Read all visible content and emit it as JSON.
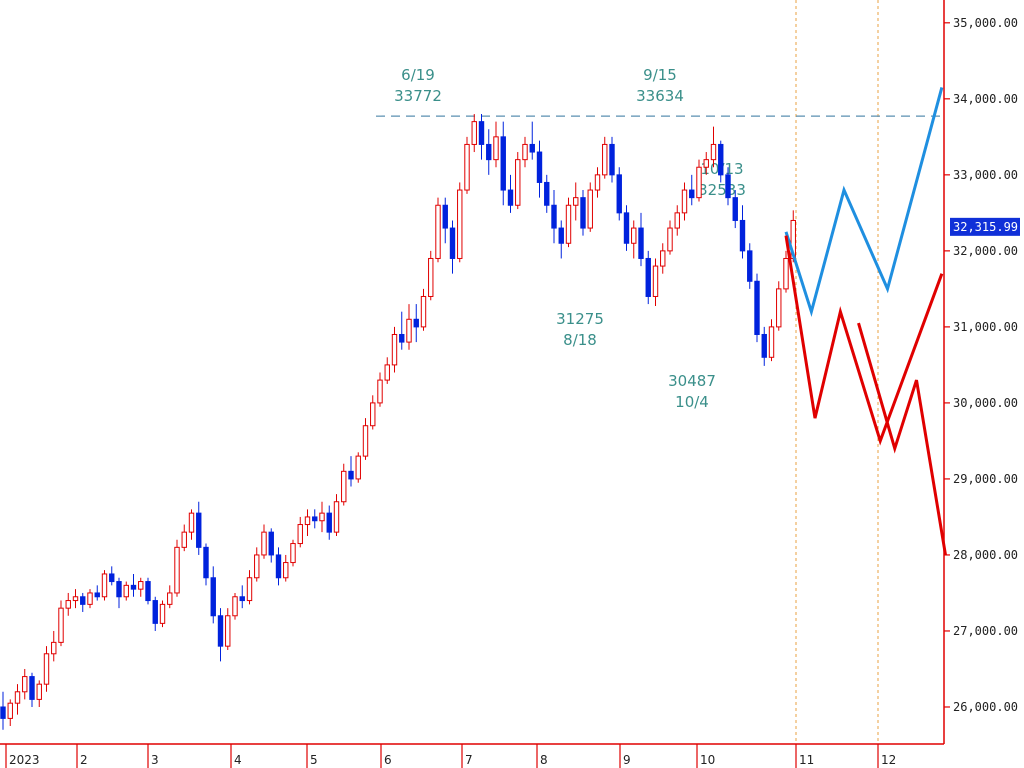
{
  "chart_data": {
    "type": "candlestick",
    "title": "",
    "ylim": [
      25500,
      35300
    ],
    "y_ticks": [
      "35,000.00",
      "34,000.00",
      "33,000.00",
      "32,000.00",
      "31,000.00",
      "30,000.00",
      "29,000.00",
      "28,000.00",
      "27,000.00",
      "26,000.00"
    ],
    "y_tick_values": [
      35000,
      34000,
      33000,
      32000,
      31000,
      30000,
      29000,
      28000,
      27000,
      26000
    ],
    "x_ticks": [
      "2023",
      "2",
      "3",
      "4",
      "5",
      "6",
      "7",
      "8",
      "9",
      "10",
      "11",
      "12"
    ],
    "current_price": 32315.99,
    "current_price_label": "32,315.99",
    "resistance_level": 33772,
    "annotations": [
      {
        "date": "6/19",
        "value": "33772"
      },
      {
        "date": "9/15",
        "value": "33634"
      },
      {
        "date": "10/13",
        "value": "32533"
      },
      {
        "value": "31275",
        "date": "8/18"
      },
      {
        "value": "30487",
        "date": "10/4"
      }
    ],
    "candles": [
      [
        26000,
        26200,
        25700,
        25850
      ],
      [
        25850,
        26100,
        25750,
        26050
      ],
      [
        26050,
        26300,
        25900,
        26200
      ],
      [
        26200,
        26500,
        26100,
        26400
      ],
      [
        26400,
        26450,
        26000,
        26100
      ],
      [
        26100,
        26350,
        26000,
        26300
      ],
      [
        26300,
        26800,
        26200,
        26700
      ],
      [
        26700,
        27000,
        26600,
        26850
      ],
      [
        26850,
        27400,
        26800,
        27300
      ],
      [
        27300,
        27500,
        27200,
        27400
      ],
      [
        27400,
        27550,
        27300,
        27450
      ],
      [
        27450,
        27500,
        27250,
        27350
      ],
      [
        27350,
        27550,
        27300,
        27500
      ],
      [
        27500,
        27600,
        27400,
        27450
      ],
      [
        27450,
        27800,
        27400,
        27750
      ],
      [
        27750,
        27850,
        27600,
        27650
      ],
      [
        27650,
        27700,
        27300,
        27450
      ],
      [
        27450,
        27650,
        27400,
        27600
      ],
      [
        27600,
        27750,
        27450,
        27550
      ],
      [
        27550,
        27700,
        27450,
        27650
      ],
      [
        27650,
        27700,
        27350,
        27400
      ],
      [
        27400,
        27450,
        27000,
        27100
      ],
      [
        27100,
        27400,
        27050,
        27350
      ],
      [
        27350,
        27600,
        27300,
        27500
      ],
      [
        27500,
        28200,
        27450,
        28100
      ],
      [
        28100,
        28400,
        28050,
        28300
      ],
      [
        28300,
        28600,
        28200,
        28550
      ],
      [
        28550,
        28700,
        28000,
        28100
      ],
      [
        28100,
        28150,
        27600,
        27700
      ],
      [
        27700,
        27850,
        27100,
        27200
      ],
      [
        27200,
        27300,
        26600,
        26800
      ],
      [
        26800,
        27300,
        26750,
        27200
      ],
      [
        27200,
        27500,
        27150,
        27450
      ],
      [
        27450,
        27600,
        27300,
        27400
      ],
      [
        27400,
        27800,
        27350,
        27700
      ],
      [
        27700,
        28100,
        27650,
        28000
      ],
      [
        28000,
        28400,
        27950,
        28300
      ],
      [
        28300,
        28350,
        27900,
        28000
      ],
      [
        28000,
        28100,
        27600,
        27700
      ],
      [
        27700,
        28000,
        27650,
        27900
      ],
      [
        27900,
        28200,
        27850,
        28150
      ],
      [
        28150,
        28500,
        28100,
        28400
      ],
      [
        28400,
        28600,
        28250,
        28500
      ],
      [
        28500,
        28600,
        28350,
        28450
      ],
      [
        28450,
        28700,
        28300,
        28550
      ],
      [
        28550,
        28650,
        28200,
        28300
      ],
      [
        28300,
        28800,
        28250,
        28700
      ],
      [
        28700,
        29200,
        28650,
        29100
      ],
      [
        29100,
        29300,
        28900,
        29000
      ],
      [
        29000,
        29350,
        28950,
        29300
      ],
      [
        29300,
        29800,
        29250,
        29700
      ],
      [
        29700,
        30100,
        29650,
        30000
      ],
      [
        30000,
        30400,
        29950,
        30300
      ],
      [
        30300,
        30600,
        30250,
        30500
      ],
      [
        30500,
        31000,
        30400,
        30900
      ],
      [
        30900,
        31200,
        30700,
        30800
      ],
      [
        30800,
        31300,
        30700,
        31100
      ],
      [
        31100,
        31300,
        30800,
        31000
      ],
      [
        31000,
        31500,
        30950,
        31400
      ],
      [
        31400,
        32000,
        31350,
        31900
      ],
      [
        31900,
        32700,
        31850,
        32600
      ],
      [
        32600,
        32700,
        32100,
        32300
      ],
      [
        32300,
        32400,
        31700,
        31900
      ],
      [
        31900,
        32900,
        31850,
        32800
      ],
      [
        32800,
        33500,
        32750,
        33400
      ],
      [
        33400,
        33800,
        33300,
        33700
      ],
      [
        33700,
        33800,
        33200,
        33400
      ],
      [
        33400,
        33600,
        33000,
        33200
      ],
      [
        33200,
        33700,
        33100,
        33500
      ],
      [
        33500,
        33700,
        32600,
        32800
      ],
      [
        32800,
        33000,
        32500,
        32600
      ],
      [
        32600,
        33300,
        32550,
        33200
      ],
      [
        33200,
        33500,
        33100,
        33400
      ],
      [
        33400,
        33700,
        33200,
        33300
      ],
      [
        33300,
        33450,
        32700,
        32900
      ],
      [
        32900,
        33000,
        32500,
        32600
      ],
      [
        32600,
        32800,
        32100,
        32300
      ],
      [
        32300,
        32400,
        31900,
        32100
      ],
      [
        32100,
        32700,
        32050,
        32600
      ],
      [
        32600,
        32900,
        32400,
        32700
      ],
      [
        32700,
        32800,
        32200,
        32300
      ],
      [
        32300,
        32900,
        32250,
        32800
      ],
      [
        32800,
        33100,
        32700,
        33000
      ],
      [
        33000,
        33500,
        32950,
        33400
      ],
      [
        33400,
        33500,
        32900,
        33000
      ],
      [
        33000,
        33100,
        32400,
        32500
      ],
      [
        32500,
        32600,
        32000,
        32100
      ],
      [
        32100,
        32400,
        31900,
        32300
      ],
      [
        32300,
        32500,
        31800,
        31900
      ],
      [
        31900,
        32000,
        31300,
        31400
      ],
      [
        31400,
        31900,
        31275,
        31800
      ],
      [
        31800,
        32100,
        31700,
        32000
      ],
      [
        32000,
        32400,
        31950,
        32300
      ],
      [
        32300,
        32600,
        32200,
        32500
      ],
      [
        32500,
        32900,
        32400,
        32800
      ],
      [
        32800,
        33000,
        32600,
        32700
      ],
      [
        32700,
        33200,
        32650,
        33100
      ],
      [
        33100,
        33300,
        33000,
        33200
      ],
      [
        33200,
        33634,
        33100,
        33400
      ],
      [
        33400,
        33450,
        32900,
        33000
      ],
      [
        33000,
        33100,
        32600,
        32700
      ],
      [
        32700,
        32800,
        32300,
        32400
      ],
      [
        32400,
        32600,
        31900,
        32000
      ],
      [
        32000,
        32100,
        31500,
        31600
      ],
      [
        31600,
        31700,
        30800,
        30900
      ],
      [
        30900,
        31000,
        30487,
        30600
      ],
      [
        30600,
        31100,
        30550,
        31000
      ],
      [
        31000,
        31600,
        30950,
        31500
      ],
      [
        31500,
        32000,
        31450,
        31900
      ],
      [
        31900,
        32533,
        31850,
        32400
      ]
    ],
    "scenarios": [
      {
        "color": "#1f8fe0",
        "points": [
          [
            108,
            32250
          ],
          [
            111.5,
            31200
          ],
          [
            116,
            32800
          ],
          [
            122,
            31500
          ],
          [
            129.5,
            34150
          ]
        ]
      },
      {
        "color": "#e00000",
        "points": [
          [
            108,
            32200
          ],
          [
            112,
            29800
          ],
          [
            115.5,
            31200
          ],
          [
            121,
            29500
          ],
          [
            129.5,
            31700
          ]
        ]
      },
      {
        "color": "#e00000",
        "points": [
          [
            118,
            31050
          ],
          [
            123,
            29400
          ],
          [
            126,
            30300
          ],
          [
            130,
            28000
          ]
        ]
      }
    ],
    "accent_up": "#e00000",
    "accent_down": "#0022dd",
    "grid": false
  }
}
